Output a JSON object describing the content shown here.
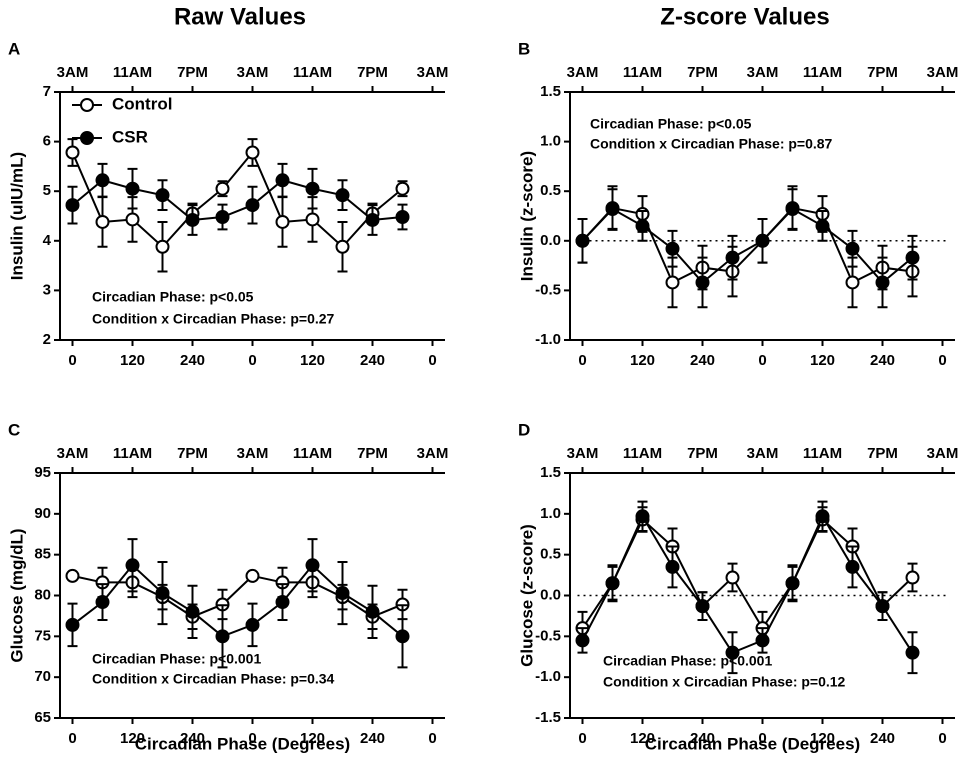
{
  "column_titles": [
    "Raw Values",
    "Z-score Values"
  ],
  "chart_data": [
    {
      "type": "line",
      "panel": "A",
      "ylabel": "Insulin (uIU/mL)",
      "x": [
        0,
        60,
        120,
        180,
        240,
        300,
        360,
        420,
        480,
        540,
        600,
        660
      ],
      "xlim": [
        -25,
        745
      ],
      "xticks": [
        0,
        120,
        240,
        {
          "value": 360,
          "label": "0"
        },
        {
          "value": 480,
          "label": "120"
        },
        {
          "value": 600,
          "label": "240"
        },
        {
          "value": 720,
          "label": "0"
        }
      ],
      "x2ticks": [
        {
          "value": 0,
          "label": "3AM"
        },
        {
          "value": 120,
          "label": "11AM"
        },
        {
          "value": 240,
          "label": "7PM"
        },
        {
          "value": 360,
          "label": "3AM"
        },
        {
          "value": 480,
          "label": "11AM"
        },
        {
          "value": 600,
          "label": "7PM"
        },
        {
          "value": 720,
          "label": "3AM"
        }
      ],
      "ylim": [
        2,
        7
      ],
      "yticks": [
        2,
        3,
        4,
        5,
        6,
        7
      ],
      "annotations": [
        "Circadian Phase: p<0.05",
        "Condition x Circadian Phase: p=0.27"
      ],
      "series": [
        {
          "name": "Control",
          "marker": "open",
          "color": "#000000",
          "values": [
            5.78,
            4.38,
            4.43,
            3.88,
            4.55,
            5.05,
            5.78,
            4.38,
            4.43,
            3.88,
            4.55,
            5.05
          ],
          "errors": [
            0.27,
            0.5,
            0.45,
            0.5,
            0.2,
            0.15,
            0.27,
            0.5,
            0.45,
            0.5,
            0.2,
            0.15
          ]
        },
        {
          "name": "CSR",
          "marker": "filled",
          "color": "#000000",
          "values": [
            4.72,
            5.22,
            5.05,
            4.92,
            4.42,
            4.48,
            4.72,
            5.22,
            5.05,
            4.92,
            4.42,
            4.48
          ],
          "errors": [
            0.37,
            0.33,
            0.4,
            0.3,
            0.3,
            0.25,
            0.37,
            0.33,
            0.4,
            0.3,
            0.3,
            0.25
          ]
        }
      ]
    },
    {
      "type": "line",
      "panel": "B",
      "ylabel": "Insulin (z-score)",
      "x": [
        0,
        60,
        120,
        180,
        240,
        300,
        360,
        420,
        480,
        540,
        600,
        660
      ],
      "xlim": [
        -25,
        745
      ],
      "xticks": [
        0,
        120,
        240,
        {
          "value": 360,
          "label": "0"
        },
        {
          "value": 480,
          "label": "120"
        },
        {
          "value": 600,
          "label": "240"
        },
        {
          "value": 720,
          "label": "0"
        }
      ],
      "x2ticks": [
        {
          "value": 0,
          "label": "3AM"
        },
        {
          "value": 120,
          "label": "11AM"
        },
        {
          "value": 240,
          "label": "7PM"
        },
        {
          "value": 360,
          "label": "3AM"
        },
        {
          "value": 480,
          "label": "11AM"
        },
        {
          "value": 600,
          "label": "7PM"
        },
        {
          "value": 720,
          "label": "3AM"
        }
      ],
      "ylim": [
        -1,
        1.5
      ],
      "yticks": [
        {
          "value": -1,
          "label": "-1.0"
        },
        {
          "value": -0.5,
          "label": "-0.5"
        },
        {
          "value": 0,
          "label": "0.0"
        },
        {
          "value": 0.5,
          "label": "0.5"
        },
        {
          "value": 1,
          "label": "1.0"
        },
        {
          "value": 1.5,
          "label": "1.5"
        }
      ],
      "refline": 0,
      "annotations": [
        "Circadian Phase: p<0.05",
        "Condition x Circadian Phase: p=0.87"
      ],
      "series": [
        {
          "marker": "open",
          "color": "#000000",
          "values": [
            0,
            0.33,
            0.27,
            -0.42,
            -0.27,
            -0.31,
            0,
            0.33,
            0.27,
            -0.42,
            -0.27,
            -0.31
          ],
          "errors": [
            0.22,
            0.22,
            0.18,
            0.25,
            0.22,
            0.25,
            0.22,
            0.22,
            0.18,
            0.25,
            0.22,
            0.25
          ]
        },
        {
          "marker": "filled",
          "color": "#000000",
          "values": [
            0,
            0.32,
            0.15,
            -0.08,
            -0.42,
            -0.17,
            0,
            0.32,
            0.15,
            -0.08,
            -0.42,
            -0.17
          ],
          "errors": [
            0.22,
            0.2,
            0.15,
            0.18,
            0.25,
            0.22,
            0.22,
            0.2,
            0.15,
            0.18,
            0.25,
            0.22
          ]
        }
      ]
    },
    {
      "type": "line",
      "panel": "C",
      "ylabel": "Glucose (mg/dL)",
      "xlabel": "Circadian Phase (Degrees)",
      "x": [
        0,
        60,
        120,
        180,
        240,
        300,
        360,
        420,
        480,
        540,
        600,
        660
      ],
      "xlim": [
        -25,
        745
      ],
      "xticks": [
        0,
        120,
        240,
        {
          "value": 360,
          "label": "0"
        },
        {
          "value": 480,
          "label": "120"
        },
        {
          "value": 600,
          "label": "240"
        },
        {
          "value": 720,
          "label": "0"
        }
      ],
      "x2ticks": [
        {
          "value": 0,
          "label": "3AM"
        },
        {
          "value": 120,
          "label": "11AM"
        },
        {
          "value": 240,
          "label": "7PM"
        },
        {
          "value": 360,
          "label": "3AM"
        },
        {
          "value": 480,
          "label": "11AM"
        },
        {
          "value": 600,
          "label": "7PM"
        },
        {
          "value": 720,
          "label": "3AM"
        }
      ],
      "ylim": [
        65,
        95
      ],
      "yticks": [
        65,
        70,
        75,
        80,
        85,
        90,
        95
      ],
      "annotations": [
        "Circadian Phase: p<0.001",
        "Condition x Circadian Phase: p=0.34"
      ],
      "series": [
        {
          "marker": "open",
          "color": "#000000",
          "values": [
            82.4,
            81.6,
            81.6,
            79.8,
            77.4,
            78.9,
            82.4,
            81.6,
            81.6,
            79.8,
            77.4,
            78.9
          ],
          "errors": [
            0,
            1.8,
            1.8,
            1.5,
            1.5,
            1.8,
            0,
            1.8,
            1.8,
            1.5,
            1.5,
            1.8
          ]
        },
        {
          "marker": "filled",
          "color": "#000000",
          "values": [
            76.4,
            79.2,
            83.7,
            80.3,
            78,
            75,
            76.4,
            79.2,
            83.7,
            80.3,
            78,
            75
          ],
          "errors": [
            2.6,
            2.2,
            3.2,
            3.8,
            3.2,
            3.8,
            2.6,
            2.2,
            3.2,
            3.8,
            3.2,
            3.8
          ]
        }
      ]
    },
    {
      "type": "line",
      "panel": "D",
      "ylabel": "Glucose (z-score)",
      "xlabel": "Circadian Phase (Degrees)",
      "x": [
        0,
        60,
        120,
        180,
        240,
        300,
        360,
        420,
        480,
        540,
        600,
        660
      ],
      "xlim": [
        -25,
        745
      ],
      "xticks": [
        0,
        120,
        240,
        {
          "value": 360,
          "label": "0"
        },
        {
          "value": 480,
          "label": "120"
        },
        {
          "value": 600,
          "label": "240"
        },
        {
          "value": 720,
          "label": "0"
        }
      ],
      "x2ticks": [
        {
          "value": 0,
          "label": "3AM"
        },
        {
          "value": 120,
          "label": "11AM"
        },
        {
          "value": 240,
          "label": "7PM"
        },
        {
          "value": 360,
          "label": "3AM"
        },
        {
          "value": 480,
          "label": "11AM"
        },
        {
          "value": 600,
          "label": "7PM"
        },
        {
          "value": 720,
          "label": "3AM"
        }
      ],
      "ylim": [
        -1.5,
        1.5
      ],
      "yticks": [
        {
          "value": -1.5,
          "label": "-1.5"
        },
        {
          "value": -1,
          "label": "-1.0"
        },
        {
          "value": -0.5,
          "label": "-0.5"
        },
        {
          "value": 0,
          "label": "0.0"
        },
        {
          "value": 0.5,
          "label": "0.5"
        },
        {
          "value": 1,
          "label": "1.0"
        },
        {
          "value": 1.5,
          "label": "1.5"
        }
      ],
      "refline": 0,
      "annotations": [
        "Circadian Phase: p<0.001",
        "Condition x Circadian Phase: p=0.12"
      ],
      "series": [
        {
          "marker": "open",
          "color": "#000000",
          "values": [
            -0.4,
            0.15,
            0.93,
            0.6,
            -0.13,
            0.22,
            -0.4,
            0.15,
            0.93,
            0.6,
            -0.13,
            0.22
          ],
          "errors": [
            0.2,
            0.2,
            0.15,
            0.22,
            0.17,
            0.17,
            0.2,
            0.2,
            0.15,
            0.22,
            0.17,
            0.17
          ]
        },
        {
          "marker": "filled",
          "color": "#000000",
          "values": [
            -0.55,
            0.15,
            0.97,
            0.35,
            -0.13,
            -0.7,
            -0.55,
            0.15,
            0.97,
            0.35,
            -0.13,
            -0.7
          ],
          "errors": [
            0.15,
            0.22,
            0.18,
            0.25,
            0.17,
            0.25,
            0.15,
            0.22,
            0.18,
            0.25,
            0.17,
            0.25
          ]
        }
      ]
    }
  ]
}
